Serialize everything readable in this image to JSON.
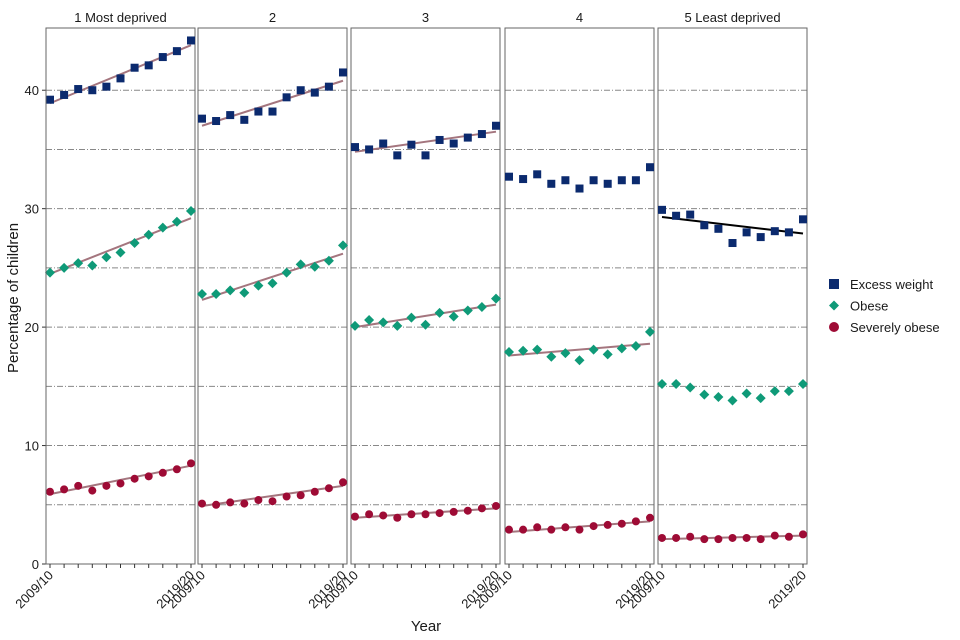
{
  "chart_data": {
    "type": "scatter",
    "facets": [
      "1 Most deprived",
      "2",
      "3",
      "4",
      "5 Least deprived"
    ],
    "x_tick_labels": [
      "2009/10",
      "2019/20"
    ],
    "x_count": 11,
    "xlabel": "Year",
    "ylabel": "Percentage of children",
    "ylim": [
      0,
      45
    ],
    "y_ticks": [
      0,
      10,
      20,
      30,
      40
    ],
    "y_gridlines": [
      5,
      10,
      15,
      20,
      25,
      30,
      35,
      40
    ],
    "legend_position": "right",
    "colors": {
      "excess": "#0b2a6e",
      "obese": "#0f9a78",
      "severe": "#9e0b35",
      "trend": "#a4757e",
      "trend_alt": "#000000"
    },
    "series": [
      {
        "key": "excess",
        "name": "Excess weight",
        "marker": "square"
      },
      {
        "key": "obese",
        "name": "Obese",
        "marker": "diamond"
      },
      {
        "key": "severe",
        "name": "Severely obese",
        "marker": "circle"
      }
    ],
    "panels": [
      {
        "excess": [
          39.2,
          39.6,
          40.1,
          40.0,
          40.3,
          41.0,
          41.9,
          42.1,
          42.8,
          43.3,
          44.2
        ],
        "obese": [
          24.6,
          25.0,
          25.4,
          25.2,
          25.9,
          26.3,
          27.1,
          27.8,
          28.4,
          28.9,
          29.8
        ],
        "severe": [
          6.1,
          6.3,
          6.6,
          6.2,
          6.6,
          6.8,
          7.2,
          7.4,
          7.7,
          8.0,
          8.5
        ],
        "trends": {
          "excess": [
            38.9,
            43.8
          ],
          "obese": [
            24.5,
            29.2
          ],
          "severe": [
            5.9,
            8.3
          ]
        }
      },
      {
        "excess": [
          37.6,
          37.4,
          37.9,
          37.5,
          38.2,
          38.2,
          39.4,
          40.0,
          39.8,
          40.3,
          41.5
        ],
        "obese": [
          22.8,
          22.8,
          23.1,
          22.9,
          23.5,
          23.7,
          24.6,
          25.3,
          25.1,
          25.6,
          26.9
        ],
        "severe": [
          5.1,
          5.0,
          5.2,
          5.1,
          5.4,
          5.3,
          5.7,
          5.8,
          6.1,
          6.4,
          6.9
        ],
        "trends": {
          "excess": [
            37.0,
            40.8
          ],
          "obese": [
            22.3,
            26.2
          ],
          "severe": [
            4.9,
            6.6
          ]
        }
      },
      {
        "excess": [
          35.2,
          35.0,
          35.5,
          34.5,
          35.4,
          34.5,
          35.8,
          35.5,
          36.0,
          36.3,
          37.0
        ],
        "obese": [
          20.1,
          20.6,
          20.4,
          20.1,
          20.8,
          20.2,
          21.2,
          20.9,
          21.4,
          21.7,
          22.4
        ],
        "severe": [
          4.0,
          4.2,
          4.1,
          3.9,
          4.2,
          4.2,
          4.3,
          4.4,
          4.5,
          4.7,
          4.9
        ],
        "trends": {
          "excess": [
            34.8,
            36.5
          ],
          "obese": [
            20.0,
            21.9
          ],
          "severe": [
            3.9,
            4.7
          ]
        }
      },
      {
        "excess": [
          32.7,
          32.5,
          32.9,
          32.1,
          32.4,
          31.7,
          32.4,
          32.1,
          32.4,
          32.4,
          33.5
        ],
        "obese": [
          17.9,
          18.0,
          18.1,
          17.5,
          17.8,
          17.2,
          18.1,
          17.7,
          18.2,
          18.4,
          19.6
        ],
        "severe": [
          2.9,
          2.9,
          3.1,
          2.9,
          3.1,
          2.9,
          3.2,
          3.3,
          3.4,
          3.6,
          3.9
        ],
        "trends": {
          "excess": null,
          "obese": [
            17.6,
            18.6
          ],
          "severe": [
            2.7,
            3.6
          ]
        }
      },
      {
        "excess": [
          29.9,
          29.4,
          29.5,
          28.6,
          28.3,
          27.1,
          28.0,
          27.6,
          28.1,
          28.0,
          29.1
        ],
        "obese": [
          15.2,
          15.2,
          14.9,
          14.3,
          14.1,
          13.8,
          14.4,
          14.0,
          14.6,
          14.6,
          15.2
        ],
        "severe": [
          2.2,
          2.2,
          2.3,
          2.1,
          2.1,
          2.2,
          2.2,
          2.1,
          2.4,
          2.3,
          2.5
        ],
        "trends": {
          "excess": [
            29.3,
            27.9
          ],
          "obese": null,
          "severe": [
            2.1,
            2.4
          ]
        },
        "excess_trend_dark": true
      }
    ]
  }
}
